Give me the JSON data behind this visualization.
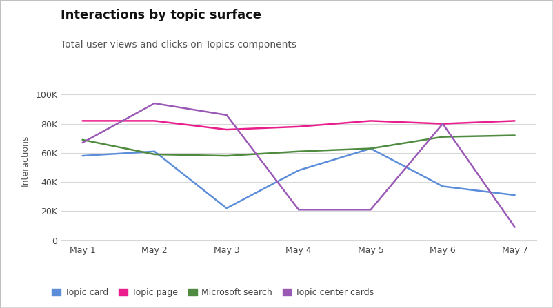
{
  "title": "Interactions by topic surface",
  "subtitle": "Total user views and clicks on Topics components",
  "ylabel": "Interactions",
  "x_labels": [
    "May 1",
    "May 2",
    "May 3",
    "May 4",
    "May 5",
    "May 6",
    "May 7"
  ],
  "series": [
    {
      "name": "Topic card",
      "color": "#5B8DD9",
      "values": [
        58000,
        61000,
        22000,
        48000,
        63000,
        37000,
        31000
      ]
    },
    {
      "name": "Topic page",
      "color": "#E91E8C",
      "values": [
        82000,
        82000,
        76000,
        78000,
        82000,
        80000,
        82000
      ]
    },
    {
      "name": "Microsoft search",
      "color": "#4E8B3F",
      "values": [
        69000,
        59000,
        58000,
        61000,
        63000,
        71000,
        72000
      ]
    },
    {
      "name": "Topic center cards",
      "color": "#9B59B6",
      "values": [
        67000,
        94000,
        86000,
        21000,
        21000,
        80000,
        9000
      ]
    }
  ],
  "ylim": [
    0,
    110000
  ],
  "yticks": [
    0,
    20000,
    40000,
    60000,
    80000,
    100000
  ],
  "ytick_labels": [
    "0",
    "20K",
    "40K",
    "60K",
    "80K",
    "100K"
  ],
  "background_color": "#ffffff",
  "grid_color": "#d8d8d8",
  "border_color": "#c0c0c0",
  "title_fontsize": 13,
  "subtitle_fontsize": 10,
  "tick_fontsize": 9,
  "ylabel_fontsize": 9,
  "legend_fontsize": 9,
  "line_width": 1.8
}
